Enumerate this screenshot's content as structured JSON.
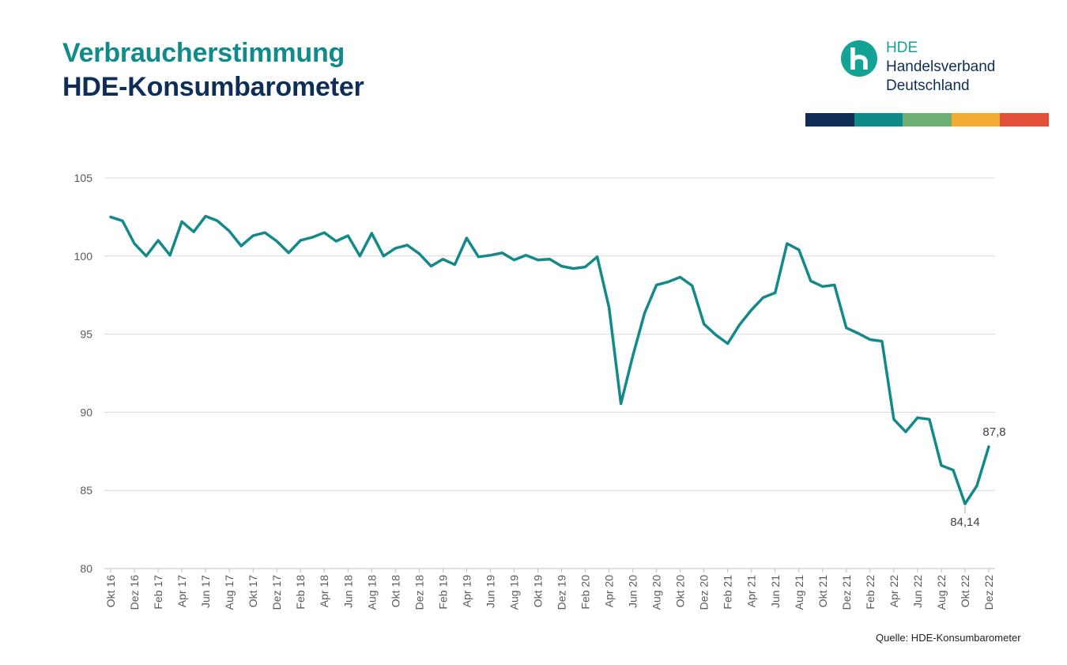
{
  "header": {
    "title_line1": "Verbraucherstimmung",
    "title_line2": "HDE-Konsumbarometer"
  },
  "logo": {
    "icon": "hde-h-logo-icon",
    "line1": "HDE",
    "line2": "Handelsverband",
    "line3": "Deutschland"
  },
  "colorbar": [
    "#0f2e57",
    "#0f8a8a",
    "#6fae74",
    "#f4ab33",
    "#e4503a"
  ],
  "source": "Quelle: HDE-Konsumbarometer",
  "chart_data": {
    "type": "line",
    "title": "Verbraucherstimmung HDE-Konsumbarometer",
    "xlabel": "",
    "ylabel": "",
    "ylim": [
      80,
      105
    ],
    "yticks": [
      80,
      85,
      90,
      95,
      100,
      105
    ],
    "grid": true,
    "line_color": "#13898a",
    "x": [
      "Okt 16",
      "Nov 16",
      "Dez 16",
      "Jan 17",
      "Feb 17",
      "Mär 17",
      "Apr 17",
      "Mai 17",
      "Jun 17",
      "Jul 17",
      "Aug 17",
      "Sep 17",
      "Okt 17",
      "Nov 17",
      "Dez 17",
      "Jan 18",
      "Feb 18",
      "Mär 18",
      "Apr 18",
      "Mai 18",
      "Jun 18",
      "Jul 18",
      "Aug 18",
      "Sep 18",
      "Okt 18",
      "Nov 18",
      "Dez 18",
      "Jan 19",
      "Feb 19",
      "Mär 19",
      "Apr 19",
      "Mai 19",
      "Jun 19",
      "Jul 19",
      "Aug 19",
      "Sep 19",
      "Okt 19",
      "Nov 19",
      "Dez 19",
      "Jan 20",
      "Feb 20",
      "Mär 20",
      "Apr 20",
      "Mai 20",
      "Jun 20",
      "Jul 20",
      "Aug 20",
      "Sep 20",
      "Okt 20",
      "Nov 20",
      "Dez 20",
      "Jan 21",
      "Feb 21",
      "Mär 21",
      "Apr 21",
      "Mai 21",
      "Jun 21",
      "Jul 21",
      "Aug 21",
      "Sep 21",
      "Okt 21",
      "Nov 21",
      "Dez 21",
      "Jan 22",
      "Feb 22",
      "Mär 22",
      "Apr 22",
      "Mai 22",
      "Jun 22",
      "Jul 22",
      "Aug 22",
      "Sep 22",
      "Okt 22",
      "Nov 22",
      "Dez 22"
    ],
    "xtick_labels": [
      "Okt 16",
      "Dez 16",
      "Feb 17",
      "Apr 17",
      "Jun 17",
      "Aug 17",
      "Okt 17",
      "Dez 17",
      "Feb 18",
      "Apr 18",
      "Jun 18",
      "Aug 18",
      "Okt 18",
      "Dez 18",
      "Feb 19",
      "Apr 19",
      "Jun 19",
      "Aug 19",
      "Okt 19",
      "Dez 19",
      "Feb 20",
      "Apr 20",
      "Jun 20",
      "Aug 20",
      "Okt 20",
      "Dez 20",
      "Feb 21",
      "Apr 21",
      "Jun 21",
      "Aug 21",
      "Okt 21",
      "Dez 21",
      "Feb 22",
      "Apr 22",
      "Jun 22",
      "Aug 22",
      "Okt 22",
      "Dez 22"
    ],
    "series": [
      {
        "name": "",
        "values": [
          102.5,
          102.25,
          100.8,
          100.0,
          101.0,
          100.05,
          102.2,
          101.55,
          102.55,
          102.25,
          101.6,
          100.65,
          101.3,
          101.5,
          100.95,
          100.2,
          101.0,
          101.2,
          101.5,
          100.95,
          101.3,
          100.0,
          101.45,
          100.0,
          100.5,
          100.7,
          100.15,
          99.35,
          99.8,
          99.45,
          101.15,
          99.95,
          100.05,
          100.2,
          99.75,
          100.05,
          99.75,
          99.8,
          99.35,
          99.2,
          99.3,
          99.95,
          96.7,
          90.55,
          93.6,
          96.35,
          98.15,
          98.35,
          98.65,
          98.1,
          95.65,
          94.95,
          94.4,
          95.6,
          96.55,
          97.35,
          97.65,
          100.8,
          100.4,
          98.4,
          98.05,
          98.15,
          95.4,
          95.05,
          94.65,
          94.55,
          89.55,
          88.75,
          89.65,
          89.55,
          86.6,
          86.3,
          84.14,
          85.3,
          87.8
        ]
      }
    ],
    "annotations": [
      {
        "x": "Okt 22",
        "label": "84,14"
      },
      {
        "x": "Dez 22",
        "label": "87,8"
      }
    ]
  }
}
